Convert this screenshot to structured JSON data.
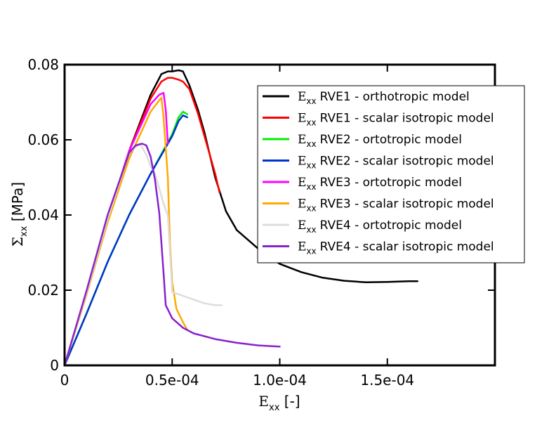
{
  "chart_data": {
    "type": "line",
    "title": "",
    "xlabel": {
      "symbol": "E",
      "sub": "xx",
      "unit": " [-]"
    },
    "ylabel": {
      "symbol": "Σ",
      "sub": "xx",
      "unit": " [MPa]"
    },
    "xlim": [
      0,
      0.0002
    ],
    "ylim": [
      0,
      0.08
    ],
    "xticks": [
      {
        "value": 0,
        "label": "0"
      },
      {
        "value": 5e-05,
        "label": "0.5e-04"
      },
      {
        "value": 0.0001,
        "label": "1.0e-04"
      },
      {
        "value": 0.00015,
        "label": "1.5e-04"
      }
    ],
    "yticks": [
      {
        "value": 0,
        "label": "0"
      },
      {
        "value": 0.02,
        "label": "0.02"
      },
      {
        "value": 0.04,
        "label": "0.04"
      },
      {
        "value": 0.06,
        "label": "0.06"
      },
      {
        "value": 0.08,
        "label": "0.08"
      }
    ],
    "legend_position": "top-right",
    "series": [
      {
        "name": "RVE1 - orthotropic model",
        "legend_symbol": "E",
        "legend_sub": "xx",
        "color": "#000000",
        "x": [
          0,
          1e-05,
          2e-05,
          3e-05,
          4e-05,
          4.5e-05,
          4.8e-05,
          5e-05,
          5.3e-05,
          5.5e-05,
          5.8e-05,
          6.2e-05,
          6.5e-05,
          7e-05,
          7.5e-05,
          8e-05,
          9e-05,
          0.0001,
          0.00011,
          0.00012,
          0.00013,
          0.00014,
          0.00015,
          0.00016,
          0.000164
        ],
        "y": [
          0,
          0.019,
          0.039,
          0.057,
          0.072,
          0.0775,
          0.0782,
          0.0782,
          0.0785,
          0.0782,
          0.0745,
          0.068,
          0.062,
          0.05,
          0.041,
          0.036,
          0.031,
          0.027,
          0.0248,
          0.0233,
          0.0225,
          0.0221,
          0.0222,
          0.0224,
          0.0224
        ]
      },
      {
        "name": "RVE1 - scalar isotropic model",
        "legend_symbol": "E",
        "legend_sub": "xx",
        "color": "#ff0000",
        "x": [
          0,
          1e-05,
          2e-05,
          3e-05,
          4e-05,
          4.5e-05,
          4.8e-05,
          5e-05,
          5.3e-05,
          5.5e-05,
          5.8e-05,
          6.2e-05,
          6.5e-05,
          7e-05,
          7.2e-05
        ],
        "y": [
          0,
          0.019,
          0.039,
          0.057,
          0.071,
          0.0755,
          0.0765,
          0.0765,
          0.076,
          0.0755,
          0.0735,
          0.067,
          0.061,
          0.051,
          0.046
        ]
      },
      {
        "name": "RVE2 - ortotropic model",
        "legend_symbol": "E",
        "legend_sub": "xx",
        "color": "#00ee00",
        "x": [
          0,
          1e-05,
          2e-05,
          3e-05,
          4e-05,
          5e-05,
          5.3e-05,
          5.5e-05,
          5.7e-05
        ],
        "y": [
          0,
          0.0135,
          0.0275,
          0.04,
          0.051,
          0.0615,
          0.066,
          0.0675,
          0.0668
        ]
      },
      {
        "name": "RVE2 - scalar isotropic model",
        "legend_symbol": "E",
        "legend_sub": "xx",
        "color": "#0033cc",
        "x": [
          0,
          1e-05,
          2e-05,
          3e-05,
          4e-05,
          5e-05,
          5.3e-05,
          5.5e-05,
          5.7e-05
        ],
        "y": [
          0,
          0.0135,
          0.0275,
          0.04,
          0.051,
          0.061,
          0.065,
          0.0665,
          0.066
        ]
      },
      {
        "name": "RVE3 - ortotropic model",
        "legend_symbol": "E",
        "legend_sub": "xx",
        "color": "#ff00ff",
        "x": [
          0,
          1e-05,
          2e-05,
          3e-05,
          4e-05,
          4.4e-05,
          4.6e-05,
          4.7e-05,
          4.8e-05
        ],
        "y": [
          0,
          0.019,
          0.039,
          0.057,
          0.0695,
          0.072,
          0.0725,
          0.068,
          0.059
        ]
      },
      {
        "name": "RVE3 - scalar isotropic model",
        "legend_symbol": "E",
        "legend_sub": "xx",
        "color": "#ffaa00",
        "x": [
          0,
          1e-05,
          2e-05,
          3e-05,
          4e-05,
          4.4e-05,
          4.5e-05,
          4.6e-05,
          4.8e-05,
          4.9e-05,
          5e-05,
          5.2e-05,
          5.5e-05,
          5.7e-05
        ],
        "y": [
          0,
          0.0185,
          0.038,
          0.055,
          0.0675,
          0.0705,
          0.0712,
          0.066,
          0.05,
          0.032,
          0.022,
          0.015,
          0.0115,
          0.0095
        ]
      },
      {
        "name": "RVE4 - ortotropic model",
        "legend_symbol": "E",
        "legend_sub": "xx",
        "color": "#dddddd",
        "x": [
          0,
          1e-05,
          2e-05,
          3e-05,
          3.5e-05,
          3.8e-05,
          4e-05,
          4.2e-05,
          4.4e-05,
          4.6e-05,
          4.8e-05,
          5e-05,
          5.5e-05,
          6e-05,
          6.5e-05,
          7e-05,
          7.3e-05
        ],
        "y": [
          0,
          0.019,
          0.039,
          0.0565,
          0.059,
          0.056,
          0.053,
          0.051,
          0.047,
          0.043,
          0.04,
          0.0195,
          0.0185,
          0.0175,
          0.0165,
          0.016,
          0.016
        ]
      },
      {
        "name": "RVE4 - scalar isotropic model",
        "legend_symbol": "E",
        "legend_sub": "xx",
        "color": "#8822cc",
        "x": [
          0,
          1e-05,
          2e-05,
          3e-05,
          3.3e-05,
          3.6e-05,
          3.8e-05,
          4e-05,
          4.2e-05,
          4.4e-05,
          4.6e-05,
          4.7e-05,
          5e-05,
          5.5e-05,
          6e-05,
          7e-05,
          8e-05,
          9e-05,
          0.0001
        ],
        "y": [
          0,
          0.0195,
          0.04,
          0.0565,
          0.0585,
          0.059,
          0.0585,
          0.0555,
          0.0495,
          0.0405,
          0.0245,
          0.016,
          0.0125,
          0.01,
          0.0085,
          0.007,
          0.006,
          0.0053,
          0.005
        ]
      }
    ]
  }
}
